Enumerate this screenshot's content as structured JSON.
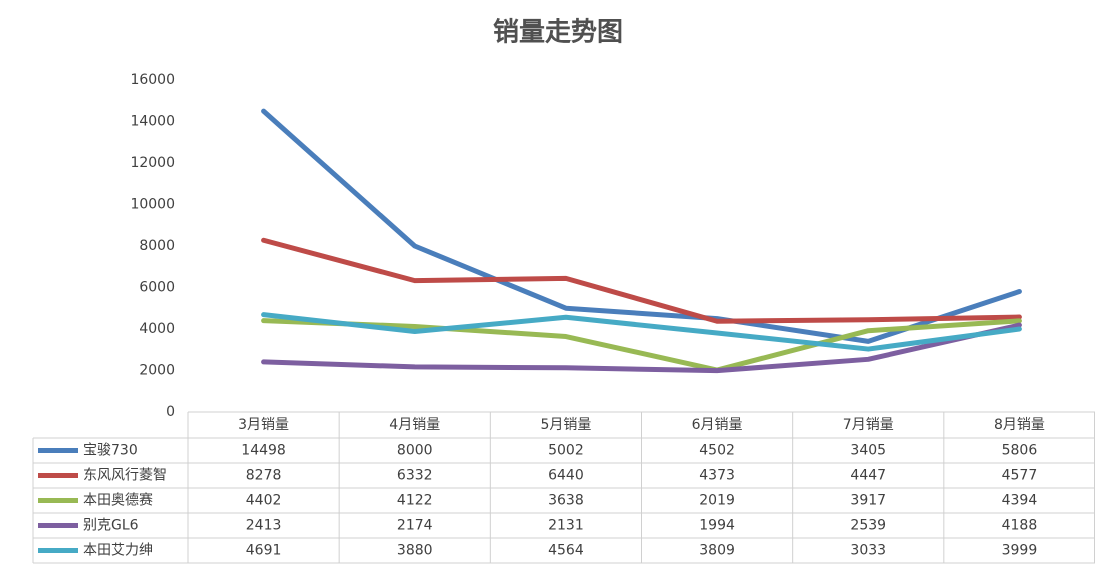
{
  "chart_data": {
    "type": "line",
    "title": "销量走势图",
    "categories": [
      "3月销量",
      "4月销量",
      "5月销量",
      "6月销量",
      "7月销量",
      "8月销量"
    ],
    "series": [
      {
        "name": "宝骏730",
        "color": "#4a7ebb",
        "values": [
          14498,
          8000,
          5002,
          4502,
          3405,
          5806
        ]
      },
      {
        "name": "东风风行菱智",
        "color": "#be4b48",
        "values": [
          8278,
          6332,
          6440,
          4373,
          4447,
          4577
        ]
      },
      {
        "name": "本田奥德赛",
        "color": "#98b954",
        "values": [
          4402,
          4122,
          3638,
          2019,
          3917,
          4394
        ]
      },
      {
        "name": "别克GL6",
        "color": "#7d5fa0",
        "values": [
          2413,
          2174,
          2131,
          1994,
          2539,
          4188
        ]
      },
      {
        "name": "本田艾力绅",
        "color": "#46aac5",
        "values": [
          4691,
          3880,
          4564,
          3809,
          3033,
          3999
        ]
      }
    ],
    "ylim": [
      0,
      16000
    ],
    "yticks": [
      0,
      2000,
      4000,
      6000,
      8000,
      10000,
      12000,
      14000,
      16000
    ]
  }
}
